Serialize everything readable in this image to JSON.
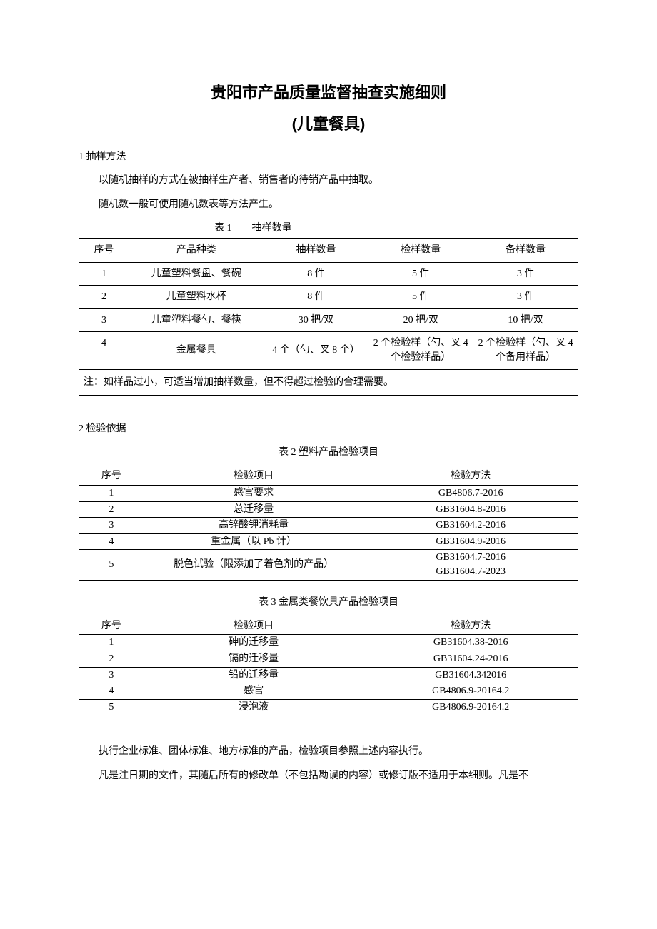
{
  "title_main": "贵阳市产品质量监督抽查实施细则",
  "title_sub": "(儿童餐具)",
  "section1": {
    "heading": "1 抽样方法",
    "p1": "以随机抽样的方式在被抽样生产者、销售者的待销产品中抽取。",
    "p2": "随机数一般可使用随机数表等方法产生。"
  },
  "table1": {
    "caption": "表 1        抽样数量",
    "headers": {
      "c1": "序号",
      "c2": "产品种类",
      "c3": "抽样数量",
      "c4": "检样数量",
      "c5": "备样数量"
    },
    "rows": [
      {
        "n": "1",
        "type": "儿童塑料餐盘、餐碗",
        "sample": "8 件",
        "test": "5 件",
        "backup": "3 件"
      },
      {
        "n": "2",
        "type": "儿童塑料水杯",
        "sample": "8 件",
        "test": "5 件",
        "backup": "3 件"
      },
      {
        "n": "3",
        "type": "儿童塑料餐勺、餐筷",
        "sample": "30 把/双",
        "test": "20 把/双",
        "backup": "10 把/双"
      },
      {
        "n": "4",
        "type": "金属餐具",
        "sample": "4 个（勺、叉 8 个）",
        "test": "2 个检验样（勺、叉 4 个检验样品）",
        "backup": "2 个检验样（勺、叉 4 个备用样品）"
      }
    ],
    "note": "注：如样品过小，可适当增加抽样数量，但不得超过检验的合理需要。"
  },
  "section2": {
    "heading": "2 检验依据"
  },
  "table2": {
    "caption": "表 2 塑料产品检验项目",
    "headers": {
      "c1": "序号",
      "c2": "检验项目",
      "c3": "检验方法"
    },
    "rows": [
      {
        "n": "1",
        "item": "感官要求",
        "method": "GB4806.7-2016"
      },
      {
        "n": "2",
        "item": "总迁移量",
        "method": "GB31604.8-2016"
      },
      {
        "n": "3",
        "item": "高锌酸钾消耗量",
        "method": "GB31604.2-2016"
      },
      {
        "n": "4",
        "item": "重金属（以 Pb 计）",
        "method": "GB31604.9-2016"
      },
      {
        "n": "5",
        "item": "脱色试验（限添加了着色剂的产品）",
        "method": "GB31604.7-2016\nGB31604.7-2023"
      }
    ]
  },
  "table3": {
    "caption": "表 3 金属类餐饮具产品检验项目",
    "headers": {
      "c1": "序号",
      "c2": "检验项目",
      "c3": "检验方法"
    },
    "rows": [
      {
        "n": "1",
        "item": "砷的迁移量",
        "method": "GB31604.38-2016"
      },
      {
        "n": "2",
        "item": "镉的迁移量",
        "method": "GB31604.24-2016"
      },
      {
        "n": "3",
        "item": "铅的迁移量",
        "method": "GB31604.342016"
      },
      {
        "n": "4",
        "item": "感官",
        "method": "GB4806.9-20164.2"
      },
      {
        "n": "5",
        "item": "浸泡液",
        "method": "GB4806.9-20164.2"
      }
    ]
  },
  "footer": {
    "p1": "执行企业标准、团体标准、地方标准的产品，检验项目参照上述内容执行。",
    "p2": "凡是注日期的文件，其随后所有的修改单（不包括勘误的内容）或修订版不适用于本细则。凡是不"
  },
  "colors": {
    "text": "#000000",
    "background": "#ffffff",
    "border": "#000000"
  }
}
